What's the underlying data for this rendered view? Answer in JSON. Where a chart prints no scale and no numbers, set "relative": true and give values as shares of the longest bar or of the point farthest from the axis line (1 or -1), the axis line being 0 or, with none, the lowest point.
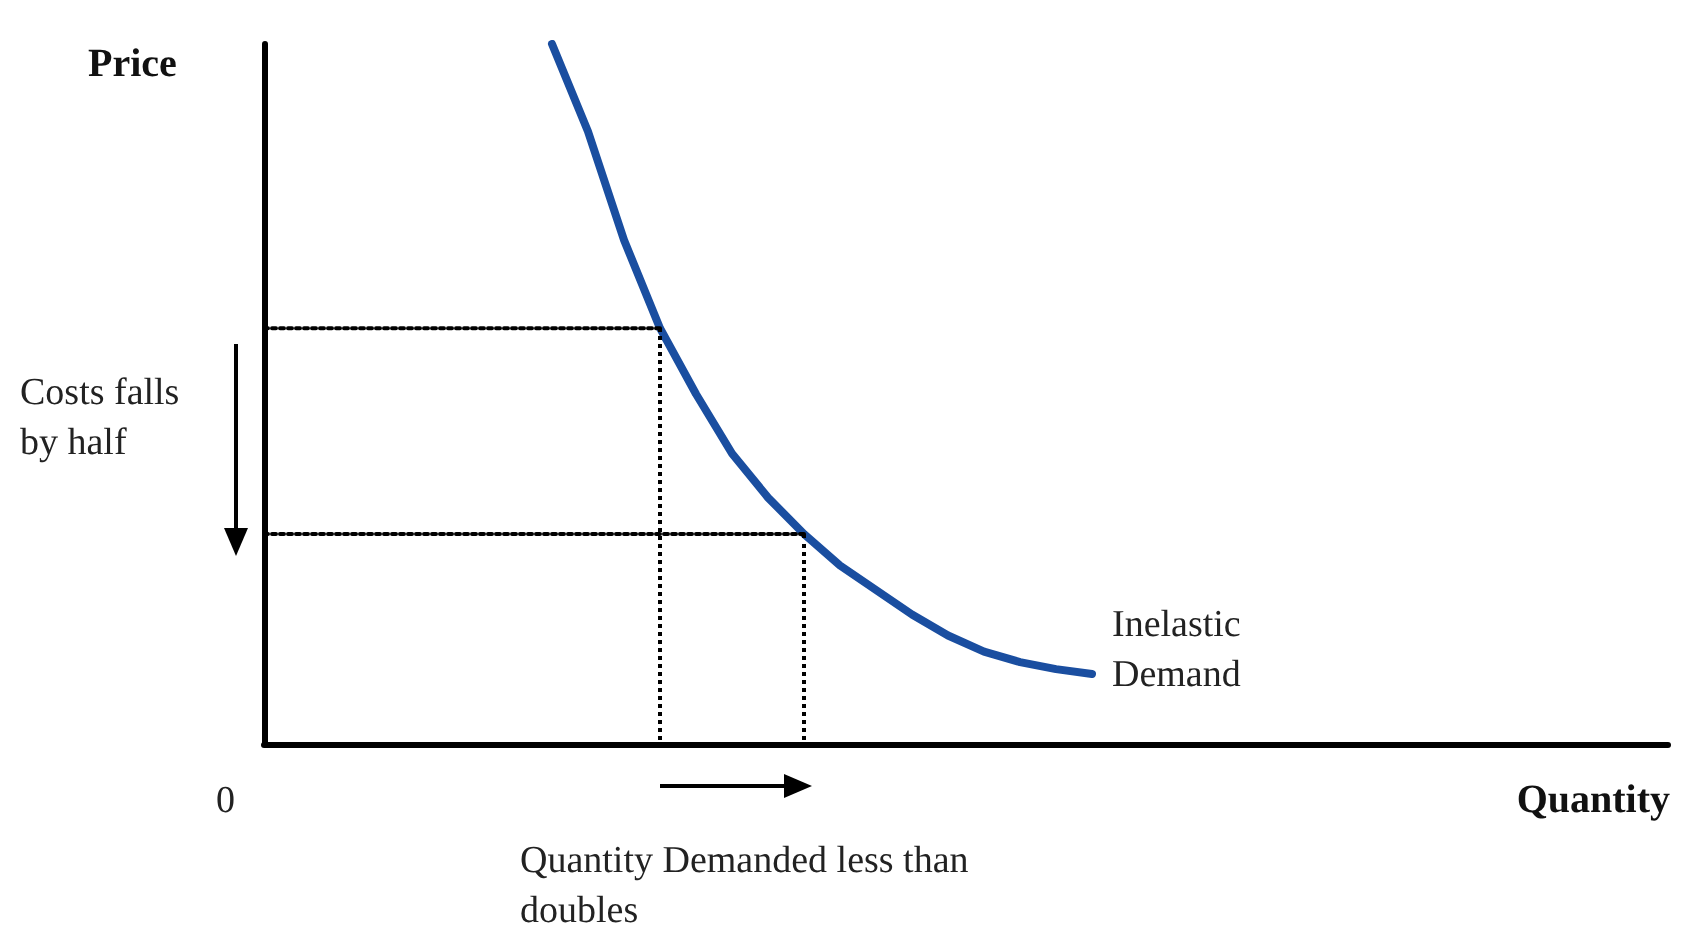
{
  "chart_data": {
    "type": "line",
    "relative": true,
    "xlabel": "Quantity",
    "ylabel": "Price",
    "grid": false,
    "legend": false,
    "categories": [
      null,
      null,
      null,
      null,
      null,
      null,
      null,
      null,
      null,
      null,
      null,
      null,
      null,
      null,
      null,
      null,
      null,
      null,
      null,
      null,
      null,
      null,
      null,
      null,
      null,
      null,
      null,
      null,
      null,
      null,
      null,
      null,
      null,
      null,
      null,
      null,
      null,
      null,
      null,
      null
    ],
    "series": [
      {
        "name": "Inelastic Demand",
        "color": "#1a4ea0",
        "line_style": "solid",
        "marker": "none",
        "values": [
          null,
          null,
          null,
          null,
          null,
          null,
          null,
          null,
          1.0,
          0.875,
          0.72,
          0.594,
          0.5,
          0.415,
          0.352,
          0.3,
          0.255,
          0.22,
          0.185,
          0.155,
          0.132,
          0.117,
          0.107,
          0.1,
          null,
          null,
          null,
          null,
          null,
          null,
          null,
          null,
          null,
          null,
          null,
          null,
          null,
          null,
          null,
          null
        ]
      },
      {
        "color": "#000000",
        "line_style": "dotted",
        "marker": "none",
        "values": [
          0.594,
          0.594,
          0.594,
          0.594,
          0.594,
          0.594,
          0.594,
          0.594,
          0.594,
          0.594,
          0.594,
          0.594,
          null,
          null,
          null,
          null,
          null,
          null,
          null,
          null,
          null,
          null,
          null,
          null,
          null,
          null,
          null,
          null,
          null,
          null,
          null,
          null,
          null,
          null,
          null,
          null,
          null,
          null,
          null,
          null
        ]
      },
      {
        "color": "#000000",
        "line_style": "dotted",
        "marker": "none",
        "values": [
          0.3,
          0.3,
          0.3,
          0.3,
          0.3,
          0.3,
          0.3,
          0.3,
          0.3,
          0.3,
          0.3,
          0.3,
          0.3,
          0.3,
          0.3,
          0.3,
          null,
          null,
          null,
          null,
          null,
          null,
          null,
          null,
          null,
          null,
          null,
          null,
          null,
          null,
          null,
          null,
          null,
          null,
          null,
          null,
          null,
          null,
          null,
          null
        ]
      }
    ],
    "annotations": [
      "0",
      "Costs falls by half",
      "Quantity Demanded less than doubles"
    ]
  }
}
